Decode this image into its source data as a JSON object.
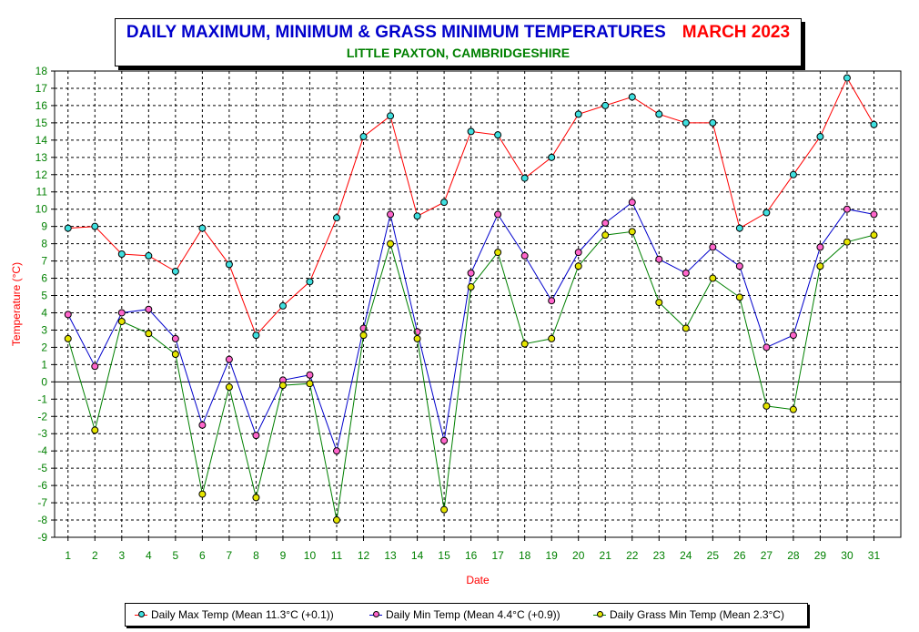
{
  "title": "DAILY MAXIMUM, MINIMUM & GRASS MINIMUM TEMPERATURES",
  "title_month": "MARCH 2023",
  "subtitle": "LITTLE PAXTON, CAMBRIDGESHIRE",
  "chart_data": {
    "type": "line",
    "title": "DAILY MAXIMUM, MINIMUM & GRASS MINIMUM TEMPERATURES     MARCH 2023",
    "subtitle": "LITTLE PAXTON, CAMBRIDGESHIRE",
    "xlabel": "Date",
    "ylabel": "Temperature (°C)",
    "ylim": [
      -9,
      18
    ],
    "grid": true,
    "legend_position": "bottom",
    "x": [
      1,
      2,
      3,
      4,
      5,
      6,
      7,
      8,
      9,
      10,
      11,
      12,
      13,
      14,
      15,
      16,
      17,
      18,
      19,
      20,
      21,
      22,
      23,
      24,
      25,
      26,
      27,
      28,
      29,
      30,
      31
    ],
    "series": [
      {
        "name": "Daily Max Temp (Mean 11.3°C (+0.1))",
        "line_color": "#ff0000",
        "marker_color": "#40e0e0",
        "values": [
          8.9,
          9.0,
          7.4,
          7.3,
          6.4,
          8.9,
          6.8,
          2.7,
          4.4,
          5.8,
          9.5,
          14.2,
          15.4,
          9.6,
          10.4,
          14.5,
          14.3,
          11.8,
          13.0,
          15.5,
          16.0,
          16.5,
          15.5,
          15.0,
          15.0,
          8.9,
          9.8,
          12.0,
          14.2,
          17.6,
          14.9
        ]
      },
      {
        "name": "Daily Min Temp (Mean 4.4°C (+0.9))",
        "line_color": "#0000cc",
        "marker_color": "#ff66cc",
        "values": [
          3.9,
          0.9,
          4.0,
          4.2,
          2.5,
          -2.5,
          1.3,
          -3.1,
          0.1,
          0.4,
          -4.0,
          3.1,
          9.7,
          2.9,
          -3.4,
          6.3,
          9.7,
          7.3,
          4.7,
          7.5,
          9.2,
          10.4,
          7.1,
          6.3,
          7.8,
          6.7,
          2.0,
          2.7,
          7.8,
          10.0,
          9.7
        ]
      },
      {
        "name": "Daily Grass Min Temp (Mean 2.3°C)",
        "line_color": "#008000",
        "marker_color": "#e6e600",
        "values": [
          2.5,
          -2.8,
          3.5,
          2.8,
          1.6,
          -6.5,
          -0.3,
          -6.7,
          -0.2,
          -0.1,
          -8.0,
          2.7,
          8.0,
          2.5,
          -7.4,
          5.5,
          7.5,
          2.2,
          2.5,
          6.7,
          8.5,
          8.7,
          4.6,
          3.1,
          6.0,
          4.9,
          -1.4,
          -1.6,
          6.7,
          8.1,
          8.5
        ]
      }
    ]
  },
  "colors": {
    "axis_text": "#008000",
    "axis_title": "#ff0000",
    "grid": "#000000"
  }
}
